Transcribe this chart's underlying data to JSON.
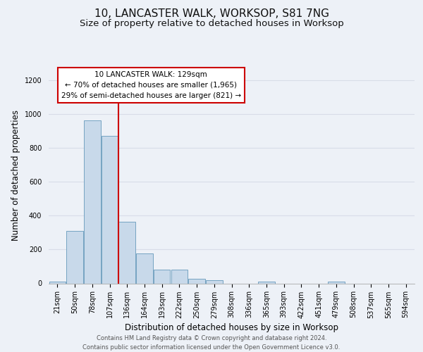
{
  "title": "10, LANCASTER WALK, WORKSOP, S81 7NG",
  "subtitle": "Size of property relative to detached houses in Worksop",
  "xlabel": "Distribution of detached houses by size in Worksop",
  "ylabel": "Number of detached properties",
  "footer_line1": "Contains HM Land Registry data © Crown copyright and database right 2024.",
  "footer_line2": "Contains public sector information licensed under the Open Government Licence v3.0.",
  "bin_labels": [
    "21sqm",
    "50sqm",
    "78sqm",
    "107sqm",
    "136sqm",
    "164sqm",
    "193sqm",
    "222sqm",
    "250sqm",
    "279sqm",
    "308sqm",
    "336sqm",
    "365sqm",
    "393sqm",
    "422sqm",
    "451sqm",
    "479sqm",
    "508sqm",
    "537sqm",
    "565sqm",
    "594sqm"
  ],
  "bar_heights": [
    12,
    310,
    965,
    870,
    365,
    175,
    80,
    80,
    25,
    18,
    0,
    0,
    12,
    0,
    0,
    0,
    12,
    0,
    0,
    0,
    0
  ],
  "bar_color": "#c8d9ea",
  "bar_edge_color": "#6699bb",
  "red_line_x": 3.5,
  "red_line_color": "#cc0000",
  "annotation_line1": "10 LANCASTER WALK: 129sqm",
  "annotation_line2": "← 70% of detached houses are smaller (1,965)",
  "annotation_line3": "29% of semi-detached houses are larger (821) →",
  "annotation_box_facecolor": "#ffffff",
  "annotation_box_edgecolor": "#cc0000",
  "ylim": [
    0,
    1280
  ],
  "yticks": [
    0,
    200,
    400,
    600,
    800,
    1000,
    1200
  ],
  "bg_color": "#edf1f7",
  "grid_color": "#d8dde8",
  "title_fontsize": 11,
  "subtitle_fontsize": 9.5,
  "ylabel_fontsize": 8.5,
  "xlabel_fontsize": 8.5,
  "tick_fontsize": 7,
  "annotation_fontsize": 7.5,
  "footer_fontsize": 6.0
}
